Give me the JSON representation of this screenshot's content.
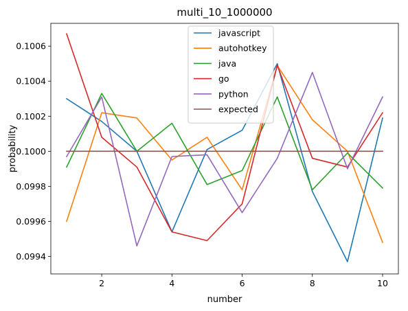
{
  "chart_data": {
    "type": "line",
    "title": "multi_10_1000000",
    "xlabel": "number",
    "ylabel": "probability",
    "xlim": [
      0.55,
      10.45
    ],
    "ylim": [
      0.0993,
      0.10073
    ],
    "xticks": [
      2,
      4,
      6,
      8,
      10
    ],
    "yticks": [
      0.0994,
      0.0996,
      0.0998,
      0.1,
      0.1002,
      0.1004,
      0.1006
    ],
    "x": [
      1,
      2,
      3,
      4,
      5,
      6,
      7,
      8,
      9,
      10
    ],
    "legend_position": "upper-center",
    "series": [
      {
        "name": "javascript",
        "color": "#1f77b4",
        "values": [
          0.1003,
          0.10017,
          0.1,
          0.09954,
          0.10001,
          0.10012,
          0.1005,
          0.09977,
          0.09937,
          0.10019
        ]
      },
      {
        "name": "autohotkey",
        "color": "#ff7f0e",
        "values": [
          0.0996,
          0.10022,
          0.10019,
          0.09995,
          0.10008,
          0.09978,
          0.10049,
          0.10018,
          0.1,
          0.09948
        ]
      },
      {
        "name": "java",
        "color": "#2ca02c",
        "values": [
          0.09991,
          0.10033,
          0.1,
          0.10016,
          0.09981,
          0.09989,
          0.10031,
          0.09978,
          0.09999,
          0.09979
        ]
      },
      {
        "name": "go",
        "color": "#d62728",
        "values": [
          0.10067,
          0.10008,
          0.09991,
          0.09954,
          0.09949,
          0.0997,
          0.10049,
          0.09996,
          0.09991,
          0.10022
        ]
      },
      {
        "name": "python",
        "color": "#9467bd",
        "values": [
          0.09997,
          0.10031,
          0.09946,
          0.09997,
          0.09998,
          0.09965,
          0.09996,
          0.10045,
          0.0999,
          0.10031
        ]
      },
      {
        "name": "expected",
        "color": "#8c564b",
        "values": [
          0.1,
          0.1,
          0.1,
          0.1,
          0.1,
          0.1,
          0.1,
          0.1,
          0.1,
          0.1
        ]
      }
    ]
  }
}
